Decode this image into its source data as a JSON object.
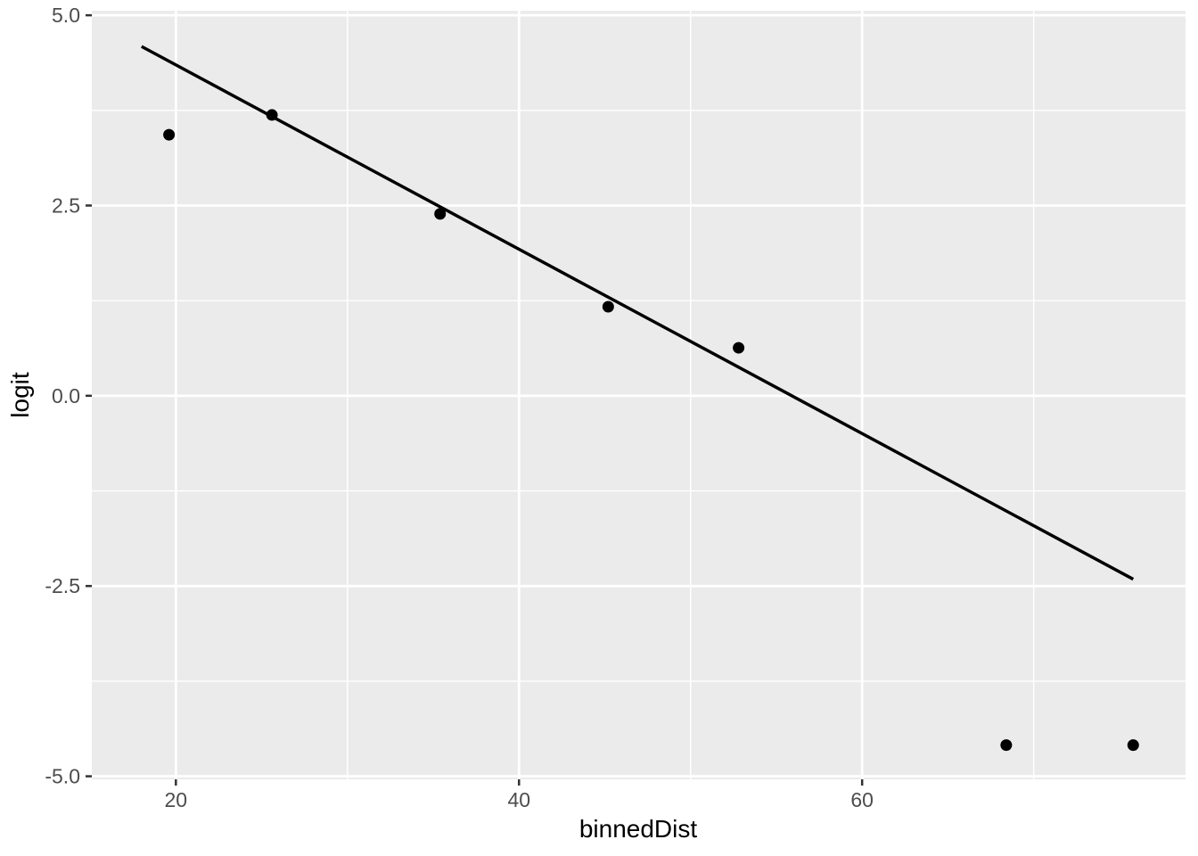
{
  "chart_data": {
    "type": "scatter",
    "title": "",
    "xlabel": "binnedDist",
    "ylabel": "logit",
    "x_domain": [
      15.1,
      78.85
    ],
    "y_domain": [
      -5.04,
      5.06
    ],
    "x_ticks": [
      {
        "value": 20,
        "label": "20"
      },
      {
        "value": 40,
        "label": "40"
      },
      {
        "value": 60,
        "label": "60"
      }
    ],
    "y_ticks": [
      {
        "value": 5.0,
        "label": "5.0"
      },
      {
        "value": 2.5,
        "label": "2.5"
      },
      {
        "value": 0.0,
        "label": "0.0"
      },
      {
        "value": -2.5,
        "label": "-2.5"
      },
      {
        "value": -5.0,
        "label": "-5.0"
      }
    ],
    "x_minor_gridlines": [
      30,
      50,
      70
    ],
    "y_minor_gridlines": [
      3.75,
      1.25,
      -1.25,
      -3.75
    ],
    "grid": "on",
    "legend": "none",
    "points": [
      {
        "x": 19.6,
        "y": 3.43
      },
      {
        "x": 25.6,
        "y": 3.69
      },
      {
        "x": 35.4,
        "y": 2.39
      },
      {
        "x": 45.2,
        "y": 1.17
      },
      {
        "x": 52.8,
        "y": 0.63
      },
      {
        "x": 68.4,
        "y": -4.59
      },
      {
        "x": 75.8,
        "y": -4.59
      }
    ],
    "regression_line": {
      "x1": 18.0,
      "y1": 4.59,
      "x2": 75.8,
      "y2": -2.41
    },
    "colors": {
      "figure_background": "#FFFFFF",
      "panel_background": "#EBEBEB",
      "gridline": "#FFFFFF",
      "point": "#000000",
      "line": "#000000",
      "tick_mark": "#333333",
      "tick_label": "#4D4D4D",
      "axis_title": "#000000"
    }
  }
}
